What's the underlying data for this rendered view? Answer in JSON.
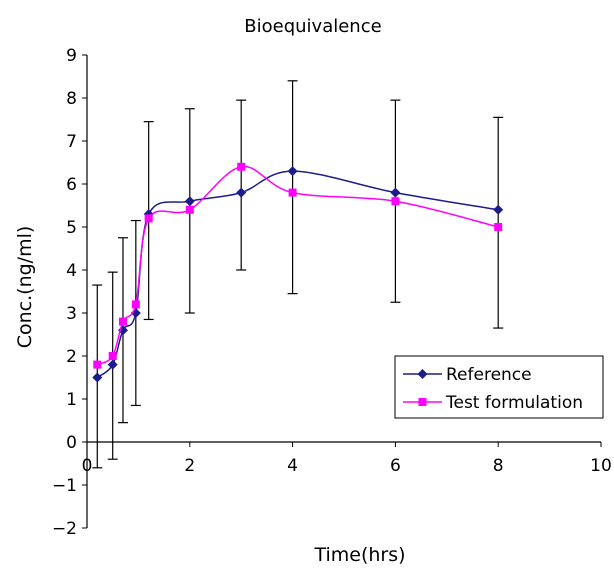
{
  "chart_data": {
    "type": "line",
    "title": "Bioequivalence",
    "xlabel": "Time(hrs)",
    "ylabel": "Conc.(ng/ml)",
    "xlim": [
      0,
      10
    ],
    "ylim": [
      -2,
      9
    ],
    "xticks": [
      "0",
      "2",
      "4",
      "6",
      "8",
      "10"
    ],
    "yticks": [
      "-2",
      "-1",
      "0",
      "1",
      "2",
      "3",
      "4",
      "5",
      "6",
      "7",
      "8",
      "9"
    ],
    "grid": false,
    "legend_position": "bottom-right",
    "series": [
      {
        "name": "Reference",
        "color": "#1c1c8c",
        "marker": "diamond",
        "x": [
          0.2,
          0.5,
          0.7,
          0.95,
          1.2,
          2,
          3,
          4,
          6,
          8
        ],
        "y": [
          1.5,
          1.8,
          2.6,
          3.0,
          5.3,
          5.6,
          5.8,
          6.3,
          5.8,
          5.4
        ]
      },
      {
        "name": "Test formulation",
        "color": "#ff00ff",
        "marker": "square",
        "x": [
          0.2,
          0.5,
          0.7,
          0.95,
          1.2,
          2,
          3,
          4,
          6,
          8
        ],
        "y": [
          1.8,
          2.0,
          2.8,
          3.2,
          5.2,
          5.4,
          6.4,
          5.8,
          5.6,
          5.0
        ]
      }
    ],
    "error_bars": {
      "x": [
        0.2,
        0.5,
        0.7,
        0.95,
        1.2,
        2,
        3,
        4,
        6,
        8
      ],
      "low": [
        -0.6,
        -0.4,
        0.45,
        0.85,
        2.85,
        3.0,
        4.0,
        3.45,
        3.25,
        2.65
      ],
      "high": [
        3.65,
        3.95,
        4.75,
        5.15,
        7.45,
        7.75,
        7.95,
        8.4,
        7.95,
        7.55
      ]
    }
  }
}
